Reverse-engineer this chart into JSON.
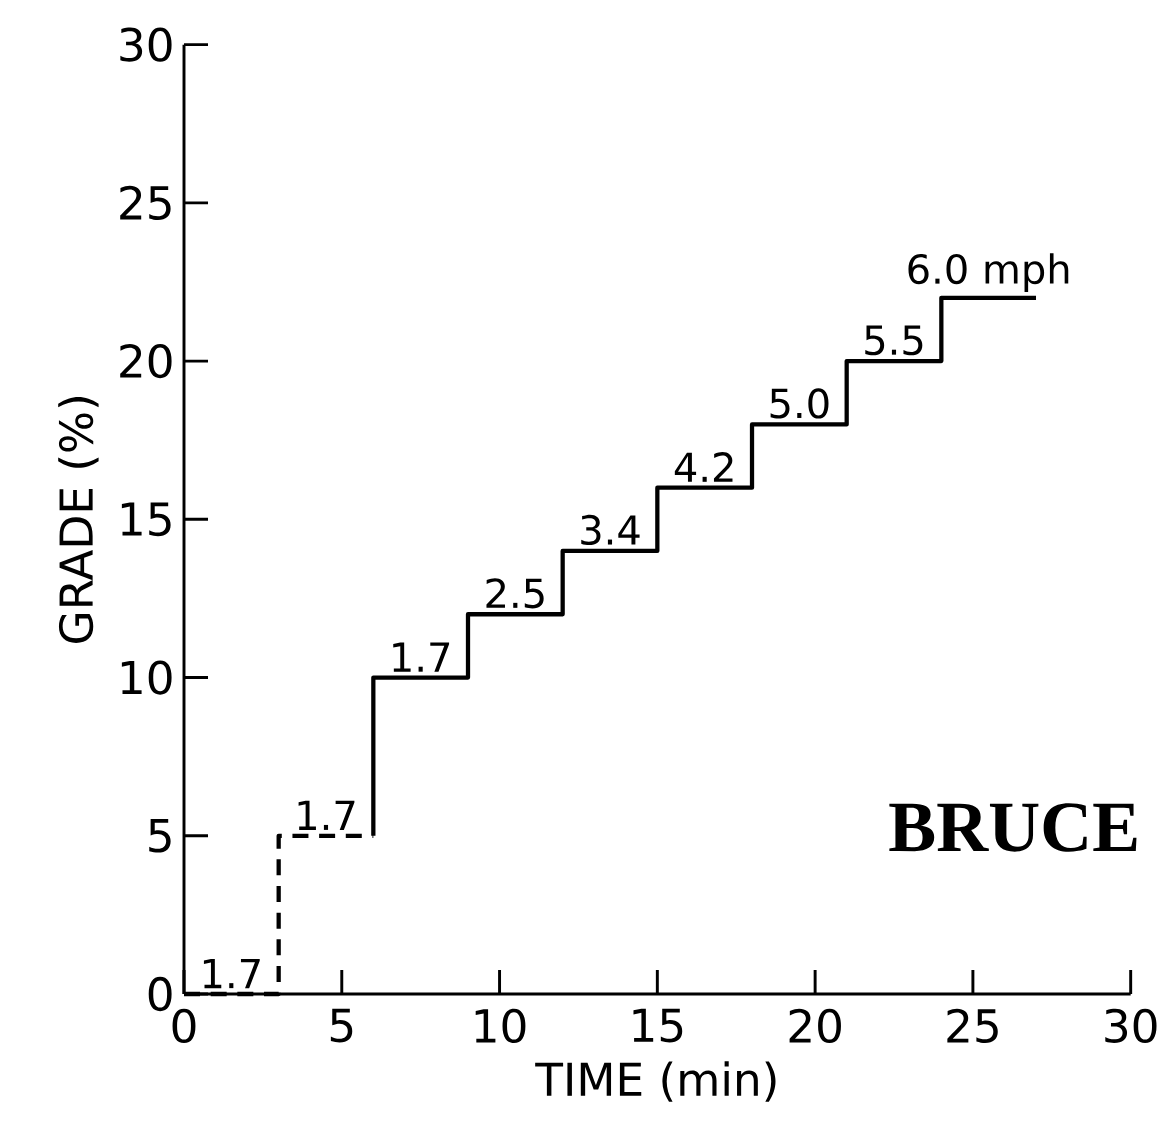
{
  "chart_data": {
    "type": "step",
    "xlabel": "TIME  (min)",
    "ylabel": "GRADE  (%)",
    "xlim": [
      0,
      30
    ],
    "ylim": [
      0,
      30
    ],
    "xticks": [
      0,
      5,
      10,
      15,
      20,
      25,
      30
    ],
    "yticks": [
      0,
      5,
      10,
      15,
      20,
      25,
      30
    ],
    "grid": false,
    "legend": false,
    "series": [
      {
        "color": "#000000",
        "line_style": "dashed",
        "x": [
          0,
          3,
          6
        ],
        "values": [
          0,
          5,
          5
        ]
      },
      {
        "color": "#000000",
        "line_style": "solid",
        "x": [
          6,
          6,
          9,
          12,
          15,
          18,
          21,
          24,
          27
        ],
        "values": [
          5,
          10,
          12,
          14,
          16,
          18,
          20,
          22,
          22
        ]
      }
    ],
    "annotations": [
      {
        "text": "1.7",
        "x": 1.5,
        "y": 0
      },
      {
        "text": "1.7",
        "x": 4.5,
        "y": 5
      },
      {
        "text": "1.7",
        "x": 7.5,
        "y": 10
      },
      {
        "text": "2.5",
        "x": 10.5,
        "y": 12
      },
      {
        "text": "3.4",
        "x": 13.5,
        "y": 14
      },
      {
        "text": "4.2",
        "x": 16.5,
        "y": 16
      },
      {
        "text": "5.0",
        "x": 19.5,
        "y": 18
      },
      {
        "text": "5.5",
        "x": 22.5,
        "y": 20
      },
      {
        "text": "6.0 mph",
        "x": 25.5,
        "y": 22
      },
      "BRUCE"
    ]
  }
}
